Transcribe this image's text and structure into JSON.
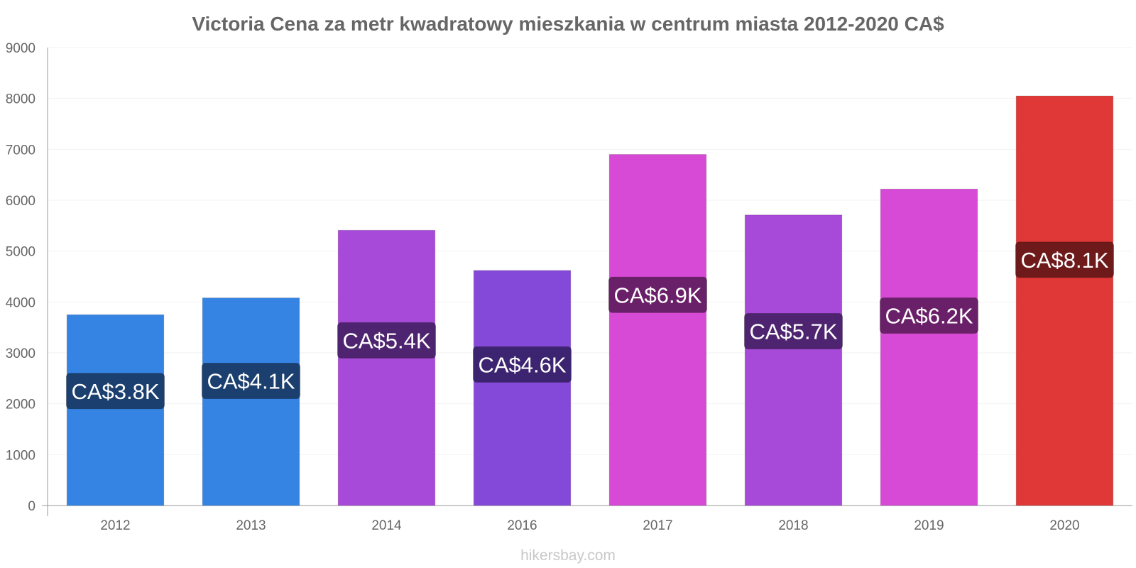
{
  "chart_data": {
    "type": "bar",
    "title": "Victoria Cena za metr kwadratowy mieszkania w centrum miasta 2012-2020 CA$",
    "xlabel": "",
    "ylabel": "",
    "categories": [
      "2012",
      "2013",
      "2014",
      "2016",
      "2017",
      "2018",
      "2019",
      "2020"
    ],
    "values": [
      3750,
      4080,
      5410,
      4620,
      6900,
      5710,
      6220,
      8050
    ],
    "data_labels": [
      "CA$3.8K",
      "CA$4.1K",
      "CA$5.4K",
      "CA$4.6K",
      "CA$6.9K",
      "CA$5.7K",
      "CA$6.2K",
      "CA$8.1K"
    ],
    "colors": [
      "#3584e4",
      "#3584e4",
      "#a74ad9",
      "#8449d8",
      "#d64ad5",
      "#a74ad9",
      "#d64ad5",
      "#e03737"
    ],
    "label_bg_colors": [
      "#1b3f6e",
      "#1b3f6e",
      "#4e2470",
      "#3c2470",
      "#6a2068",
      "#4e2470",
      "#6a2068",
      "#6e1a1a"
    ],
    "ylim": [
      0,
      9000
    ],
    "yticks": [
      0,
      1000,
      2000,
      3000,
      4000,
      5000,
      6000,
      7000,
      8000,
      9000
    ],
    "grid": true,
    "legend": "none"
  },
  "credit": "hikersbay.com"
}
